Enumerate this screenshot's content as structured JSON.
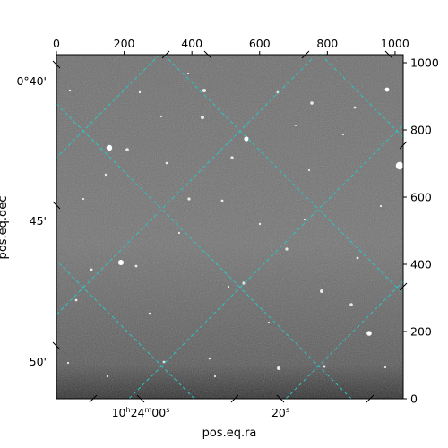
{
  "chart_data": {
    "type": "image",
    "title": "",
    "xlabel": "pos.eq.ra",
    "ylabel": "pos.eq.dec",
    "pixel_axes": {
      "x_range": [
        0,
        1024
      ],
      "y_range": [
        0,
        1024
      ],
      "x_ticks": [
        0,
        200,
        400,
        600,
        800,
        1000
      ],
      "y_ticks": [
        0,
        200,
        400,
        600,
        800,
        1000
      ],
      "x_tick_labels": [
        "0",
        "200",
        "400",
        "600",
        "800",
        "1000"
      ],
      "y_tick_labels": [
        "0",
        "200",
        "400",
        "600",
        "800",
        "1000"
      ]
    },
    "world_axes": {
      "ra_labels": [
        {
          "h": "10",
          "m": "24",
          "s": "00"
        },
        {
          "h": "",
          "m": "",
          "s": "20"
        }
      ],
      "dec_labels": [
        "0°40'",
        "45'",
        "50'"
      ]
    },
    "grid": true,
    "grid_color": "#2ec4c4",
    "colormap": "gray"
  }
}
